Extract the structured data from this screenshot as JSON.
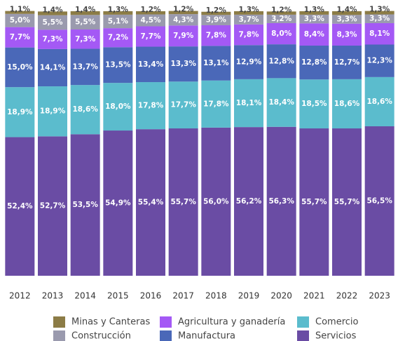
{
  "chart_data": {
    "type": "stacked_bar",
    "categories": [
      "2012",
      "2013",
      "2014",
      "2015",
      "2016",
      "2017",
      "2018",
      "2019",
      "2020",
      "2021",
      "2022",
      "2023"
    ],
    "ylim": [
      0,
      100
    ],
    "series": [
      {
        "name": "Servicios",
        "color": "#6a4ca4",
        "values": [
          52.4,
          52.7,
          53.5,
          54.9,
          55.4,
          55.7,
          56.0,
          56.2,
          56.3,
          55.7,
          55.7,
          56.5
        ],
        "value_labels": [
          "52,4%",
          "52,7%",
          "53,5%",
          "54,9%",
          "55,4%",
          "55,7%",
          "56,0%",
          "56,2%",
          "56,3%",
          "55,7%",
          "55,7%",
          "56,5%"
        ]
      },
      {
        "name": "Comercio",
        "color": "#5bbccd",
        "values": [
          18.9,
          18.9,
          18.6,
          18.0,
          17.8,
          17.7,
          17.8,
          18.1,
          18.4,
          18.5,
          18.6,
          18.6
        ],
        "value_labels": [
          "18,9%",
          "18,9%",
          "18,6%",
          "18,0%",
          "17,8%",
          "17,7%",
          "17,8%",
          "18,1%",
          "18,4%",
          "18,5%",
          "18,6%",
          "18,6%"
        ]
      },
      {
        "name": "Manufactura",
        "color": "#4a68b8",
        "values": [
          15.0,
          14.1,
          13.7,
          13.5,
          13.4,
          13.3,
          13.1,
          12.9,
          12.8,
          12.8,
          12.7,
          12.3
        ],
        "value_labels": [
          "15,0%",
          "14,1%",
          "13,7%",
          "13,5%",
          "13,4%",
          "13,3%",
          "13,1%",
          "12,9%",
          "12,8%",
          "12,8%",
          "12,7%",
          "12,3%"
        ]
      },
      {
        "name": "Agricultura y ganadería",
        "color": "#a459f5",
        "values": [
          7.7,
          7.3,
          7.3,
          7.2,
          7.7,
          7.9,
          7.8,
          7.8,
          8.0,
          8.4,
          8.3,
          8.1
        ],
        "value_labels": [
          "7,7%",
          "7,3%",
          "7,3%",
          "7,2%",
          "7,7%",
          "7,9%",
          "7,8%",
          "7,8%",
          "8,0%",
          "8,4%",
          "8,3%",
          "8,1%"
        ]
      },
      {
        "name": "Construcción",
        "color": "#9a9aae",
        "values": [
          5.0,
          5.5,
          5.5,
          5.1,
          4.5,
          4.3,
          3.9,
          3.7,
          3.2,
          3.3,
          3.3,
          3.3
        ],
        "value_labels": [
          "5,0%",
          "5,5%",
          "5,5%",
          "5,1%",
          "4,5%",
          "4,3%",
          "3,9%",
          "3,7%",
          "3,2%",
          "3,3%",
          "3,3%",
          "3,3%"
        ]
      },
      {
        "name": "Minas y Canteras",
        "color": "#8c7c46",
        "values": [
          1.1,
          1.4,
          1.4,
          1.3,
          1.2,
          1.2,
          1.2,
          1.3,
          1.2,
          1.3,
          1.4,
          1.3
        ],
        "value_labels": [
          "1,1%",
          "1,4%",
          "1,4%",
          "1,3%",
          "1,2%",
          "1,2%",
          "1,2%",
          "1,3%",
          "1,2%",
          "1,3%",
          "1,4%",
          "1,3%"
        ]
      }
    ]
  }
}
